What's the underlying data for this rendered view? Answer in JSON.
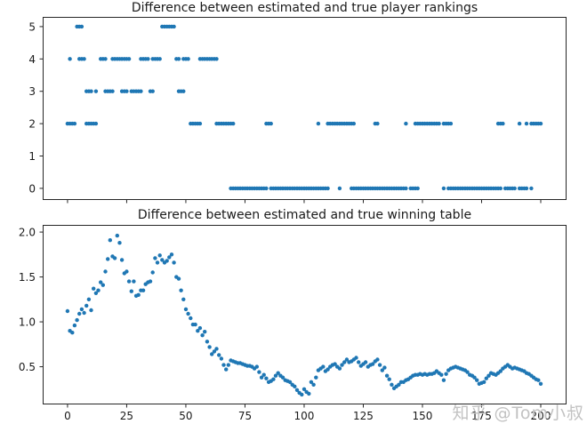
{
  "figure": {
    "background": "#ffffff",
    "watermark": {
      "text": "知乎 @Tom小叔",
      "color": "#c2c2c2"
    }
  },
  "chart_data": [
    {
      "type": "scatter",
      "title": "Difference between estimated and true player rankings",
      "xlabel": "",
      "ylabel": "",
      "grid": false,
      "legend": null,
      "xlim": [
        -10.5,
        210.9
      ],
      "ylim": [
        -0.36,
        5.3
      ],
      "x_ticks": [
        0,
        25,
        50,
        75,
        100,
        125,
        150,
        175,
        200
      ],
      "y_ticks": [
        0,
        1,
        2,
        3,
        4,
        5
      ],
      "y_tick_labels": [
        "0",
        "1",
        "2",
        "3",
        "4",
        "5"
      ],
      "dot_color": "#1f77b4",
      "dot_radius": 2.2,
      "frame_color": "#262626",
      "rows": [
        {
          "y": 5,
          "xs": [
            4,
            5,
            6,
            40,
            41,
            42,
            43,
            44,
            45
          ]
        },
        {
          "y": 4,
          "xs": [
            1,
            5,
            6,
            7,
            14,
            15,
            16,
            19,
            20,
            21,
            22,
            23,
            24,
            25,
            26,
            31,
            32,
            33,
            34,
            36,
            37,
            38,
            39,
            46,
            47,
            49,
            50,
            51,
            56,
            57,
            58,
            59,
            60,
            61,
            62,
            63
          ]
        },
        {
          "y": 3,
          "xs": [
            8,
            9,
            10,
            12,
            16,
            17,
            18,
            19,
            23,
            24,
            25,
            27,
            28,
            29,
            30,
            31,
            35,
            36,
            47,
            48,
            49
          ]
        },
        {
          "y": 2,
          "xs": [
            0,
            1,
            2,
            3,
            8,
            9,
            10,
            11,
            12,
            52,
            53,
            54,
            55,
            56,
            63,
            64,
            65,
            66,
            67,
            68,
            69,
            70,
            84,
            85,
            86,
            106,
            110,
            111,
            112,
            113,
            114,
            115,
            116,
            117,
            118,
            119,
            120,
            121,
            130,
            131,
            143,
            147,
            148,
            149,
            150,
            151,
            152,
            153,
            154,
            155,
            156,
            157,
            159,
            160,
            161,
            162,
            182,
            183,
            184,
            191,
            194,
            196,
            197,
            198,
            199,
            200
          ]
        },
        {
          "y": 0,
          "xs": [
            69,
            70,
            71,
            72,
            73,
            74,
            75,
            76,
            77,
            78,
            79,
            80,
            81,
            82,
            83,
            84,
            86,
            87,
            88,
            89,
            90,
            91,
            92,
            93,
            94,
            95,
            96,
            97,
            98,
            99,
            100,
            101,
            102,
            103,
            104,
            105,
            106,
            107,
            108,
            109,
            110,
            115,
            120,
            121,
            122,
            123,
            124,
            125,
            126,
            127,
            128,
            129,
            130,
            131,
            132,
            133,
            134,
            135,
            136,
            137,
            138,
            139,
            140,
            141,
            142,
            143,
            145,
            146,
            147,
            148,
            159,
            161,
            162,
            163,
            164,
            165,
            166,
            167,
            168,
            169,
            170,
            171,
            172,
            173,
            174,
            175,
            176,
            177,
            178,
            179,
            180,
            181,
            182,
            183,
            185,
            186,
            187,
            188,
            189,
            191,
            192,
            193,
            194,
            196
          ]
        }
      ]
    },
    {
      "type": "scatter",
      "title": "Difference between estimated and true winning table",
      "xlabel": "",
      "ylabel": "",
      "grid": false,
      "legend": null,
      "xlim": [
        -10.5,
        210.9
      ],
      "ylim": [
        0.08,
        2.08
      ],
      "x_ticks": [
        0,
        25,
        50,
        75,
        100,
        125,
        150,
        175,
        200
      ],
      "x_tick_labels": [
        "0",
        "25",
        "50",
        "75",
        "100",
        "125",
        "150",
        "175",
        "200"
      ],
      "y_ticks": [
        0.5,
        1.0,
        1.5,
        2.0
      ],
      "y_tick_labels": [
        "0.5",
        "1.0",
        "1.5",
        "2.0"
      ],
      "dot_color": "#1f77b4",
      "dot_radius": 2.2,
      "frame_color": "#262626",
      "x_start": 0,
      "y_values": [
        1.12,
        0.9,
        0.88,
        0.96,
        1.02,
        1.09,
        1.14,
        1.1,
        1.18,
        1.25,
        1.13,
        1.37,
        1.32,
        1.35,
        1.44,
        1.41,
        1.56,
        1.7,
        1.91,
        1.73,
        1.71,
        1.96,
        1.88,
        1.69,
        1.54,
        1.56,
        1.45,
        1.34,
        1.45,
        1.29,
        1.3,
        1.35,
        1.35,
        1.42,
        1.44,
        1.45,
        1.55,
        1.71,
        1.66,
        1.74,
        1.69,
        1.66,
        1.68,
        1.72,
        1.75,
        1.66,
        1.5,
        1.48,
        1.35,
        1.25,
        1.14,
        1.09,
        1.04,
        0.97,
        0.97,
        0.9,
        0.93,
        0.85,
        0.89,
        0.78,
        0.72,
        0.64,
        0.67,
        0.7,
        0.63,
        0.59,
        0.52,
        0.47,
        0.52,
        0.57,
        0.56,
        0.55,
        0.54,
        0.54,
        0.53,
        0.52,
        0.51,
        0.51,
        0.5,
        0.48,
        0.5,
        0.44,
        0.38,
        0.41,
        0.37,
        0.33,
        0.34,
        0.36,
        0.4,
        0.43,
        0.4,
        0.38,
        0.35,
        0.34,
        0.33,
        0.3,
        0.28,
        0.24,
        0.21,
        0.19,
        0.25,
        0.22,
        0.2,
        0.33,
        0.3,
        0.38,
        0.46,
        0.48,
        0.5,
        0.45,
        0.47,
        0.5,
        0.52,
        0.53,
        0.5,
        0.48,
        0.52,
        0.55,
        0.58,
        0.55,
        0.56,
        0.58,
        0.6,
        0.55,
        0.51,
        0.53,
        0.55,
        0.5,
        0.52,
        0.53,
        0.56,
        0.58,
        0.52,
        0.46,
        0.49,
        0.4,
        0.36,
        0.3,
        0.26,
        0.28,
        0.3,
        0.33,
        0.33,
        0.35,
        0.36,
        0.38,
        0.4,
        0.41,
        0.41,
        0.42,
        0.41,
        0.42,
        0.41,
        0.42,
        0.42,
        0.43,
        0.45,
        0.43,
        0.41,
        0.35,
        0.42,
        0.46,
        0.48,
        0.49,
        0.5,
        0.49,
        0.48,
        0.47,
        0.46,
        0.44,
        0.41,
        0.4,
        0.38,
        0.35,
        0.31,
        0.32,
        0.33,
        0.37,
        0.4,
        0.43,
        0.42,
        0.41,
        0.43,
        0.45,
        0.48,
        0.5,
        0.52,
        0.5,
        0.48,
        0.49,
        0.48,
        0.47,
        0.46,
        0.45,
        0.43,
        0.42,
        0.4,
        0.38,
        0.36,
        0.35,
        0.31
      ]
    }
  ]
}
